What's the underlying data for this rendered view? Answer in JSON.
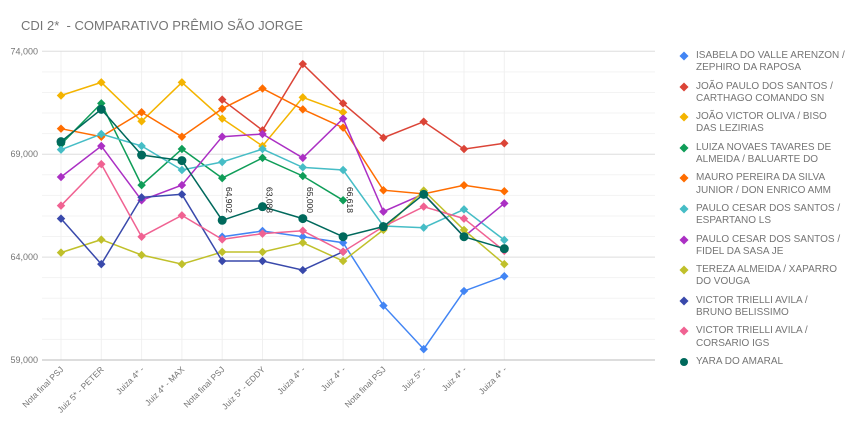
{
  "title": "CDI 2*  - COMPARATIVO PRÊMIO SÃO JORGE",
  "chart_data": {
    "type": "line",
    "title": "CDI 2*  - COMPARATIVO PRÊMIO SÃO JORGE",
    "xlabel": "",
    "ylabel": "",
    "ylim": [
      59000,
      74000
    ],
    "yticks": [
      "59,000",
      "64,000",
      "69,000",
      "74,000"
    ],
    "ytick_values": [
      59000,
      64000,
      69000,
      74000
    ],
    "grid": true,
    "legend": "right",
    "categories": [
      "Nota final PSJ",
      "Juiz 5* - PETER",
      "Juiza 4* -",
      "Juiz 4* - MAX",
      "Nota final PSJ",
      "Juiz 5* - EDDY",
      "Juiza 4* -",
      "Juiz 4* -",
      "Nota final PSJ",
      "Juiz 5* -",
      "Juiz 4* -",
      "Juiza 4* -"
    ],
    "series": [
      {
        "name": "ISABELA DO VALLE ARENZON / ZEPHIRO DA RAPOSA",
        "color": "#4285f4",
        "marker": "diamond",
        "values": [
          null,
          null,
          null,
          null,
          64990,
          65270,
          64990,
          64700,
          61640,
          59530,
          62350,
          63070
        ]
      },
      {
        "name": "JOÃO PAULO DOS SANTOS / CARTHAGO COMANDO SN",
        "color": "#db4437",
        "marker": "diamond",
        "values": [
          null,
          null,
          null,
          null,
          71650,
          70160,
          73380,
          71470,
          69800,
          70580,
          69250,
          69530
        ]
      },
      {
        "name": "JOÃO VICTOR OLIVA / BISO DAS LEZIRIAS",
        "color": "#f4b400",
        "marker": "diamond",
        "values": [
          71850,
          72490,
          70600,
          72490,
          70730,
          69400,
          71760,
          71040,
          null,
          null,
          null,
          null
        ]
      },
      {
        "name": "LUIZA NOVAES TAVARES DE ALMEIDA / BALUARTE DO",
        "color": "#0f9d58",
        "marker": "diamond",
        "values": [
          69480,
          71470,
          67500,
          69250,
          67840,
          68820,
          67940,
          66760,
          null,
          null,
          null,
          null
        ]
      },
      {
        "name": "MAURO PEREIRA DA SILVA JUNIOR / DON ENRICO AMM",
        "color": "#ff6d00",
        "marker": "diamond",
        "values": [
          70240,
          69850,
          71040,
          69850,
          71210,
          72190,
          71180,
          70290,
          67250,
          67070,
          67490,
          67200
        ]
      },
      {
        "name": "PAULO CESAR DOS SANTOS / ESPARTANO LS",
        "color": "#46bdc6",
        "marker": "diamond",
        "values": [
          69220,
          69980,
          69400,
          68230,
          68620,
          69250,
          68360,
          68230,
          65510,
          65430,
          66320,
          64830
        ]
      },
      {
        "name": "PAULO CESAR DOS SANTOS / FIDEL DA SASA JE",
        "color": "#ab30c4",
        "marker": "diamond",
        "values": [
          67890,
          69400,
          66760,
          67500,
          69850,
          69980,
          68820,
          70730,
          66210,
          67070,
          64990,
          66610
        ]
      },
      {
        "name": "TEREZA ALMEIDA / XAPARRO DO VOUGA",
        "color": "#c0c02a",
        "marker": "diamond",
        "values": [
          64220,
          64850,
          64100,
          63660,
          64250,
          64250,
          64700,
          63810,
          65320,
          67230,
          65320,
          63660
        ]
      },
      {
        "name": "VICTOR TRIELLI AVILA / BRUNO BELISSIMO",
        "color": "#3949ab",
        "marker": "diamond",
        "values": [
          65870,
          63660,
          66900,
          67050,
          63810,
          63810,
          63370,
          64260,
          null,
          null,
          null,
          null
        ]
      },
      {
        "name": "VICTOR TRIELLI AVILA / CORSARIO IGS",
        "color": "#f06292",
        "marker": "diamond",
        "values": [
          66500,
          68520,
          64990,
          66030,
          64860,
          65140,
          65280,
          64260,
          65480,
          66450,
          65870,
          64300
        ]
      },
      {
        "name": "YARA DO AMARAL",
        "color": "#00695c",
        "marker": "circle",
        "values": [
          69610,
          71180,
          68960,
          68690,
          65790,
          66450,
          65870,
          64990,
          65480,
          67050,
          64990,
          64410
        ]
      }
    ],
    "annotations": [
      {
        "category_index": 4,
        "text": "64,902"
      },
      {
        "category_index": 5,
        "text": "63,088"
      },
      {
        "category_index": 6,
        "text": "65,000"
      },
      {
        "category_index": 7,
        "text": "66,618"
      }
    ]
  }
}
